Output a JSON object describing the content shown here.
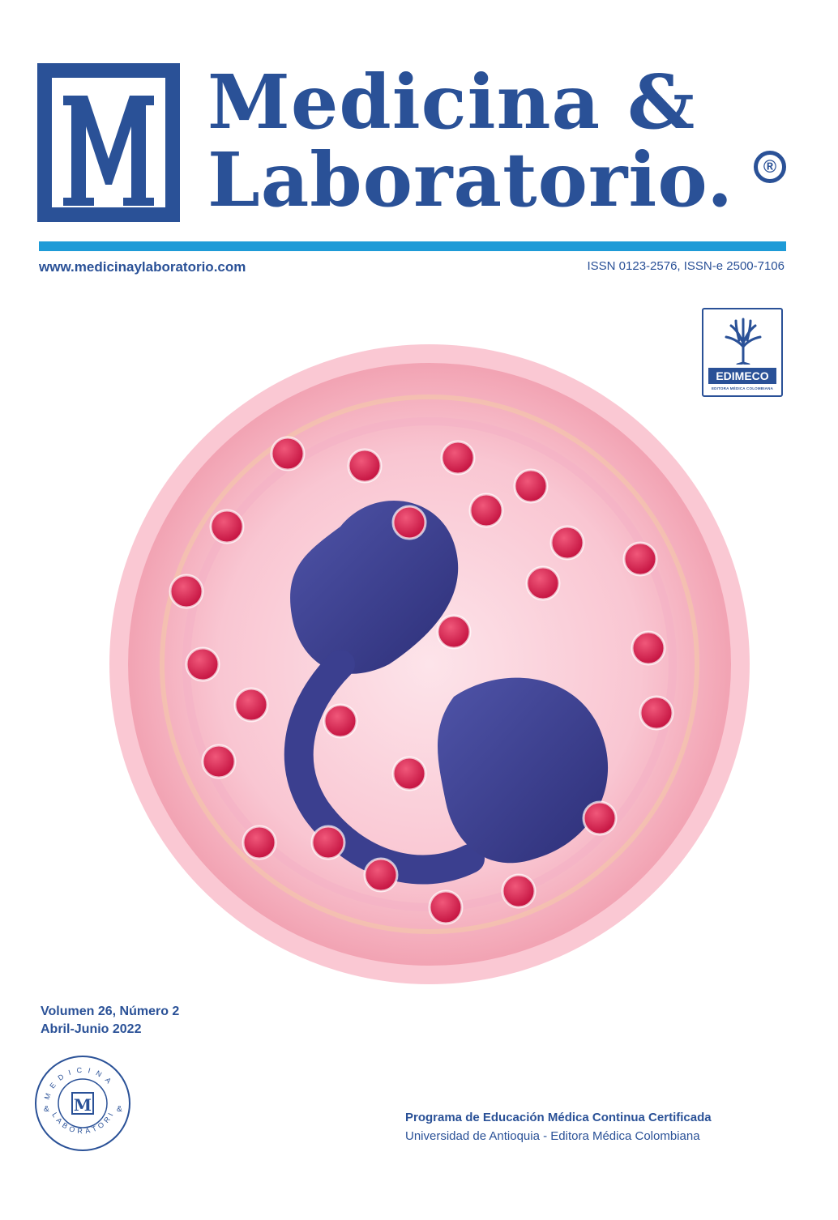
{
  "journal": {
    "title_line1": "Medicina &",
    "title_line2": "Laboratorio.",
    "registered_mark": "®",
    "logo_letter": "M",
    "website": "www.medicinaylaboratorio.com",
    "issn": "ISSN 0123-2576, ISSN-e 2500-7106"
  },
  "publisher_badge": {
    "name": "EDIMECO",
    "subtitle": "EDITORA MÉDICA COLOMBIANA"
  },
  "issue": {
    "volume": "Volumen 26, Número 2",
    "date": "Abril-Junio 2022"
  },
  "seal": {
    "ring_top": "MEDICINA",
    "ring_bottom": "LABORATORIO",
    "ampersand": "&",
    "letter": "M"
  },
  "footer": {
    "program": "Programa de Educación Médica Continua Certificada",
    "publishers": "Universidad de Antioquia - Editora Médica Colombiana"
  },
  "colors": {
    "brand_blue": "#2a5197",
    "rule_blue": "#1e9bd7",
    "cell_pink": "#f2a3b3",
    "granule_red": "#d6204f",
    "nucleus_blue": "#3b3f8f"
  }
}
